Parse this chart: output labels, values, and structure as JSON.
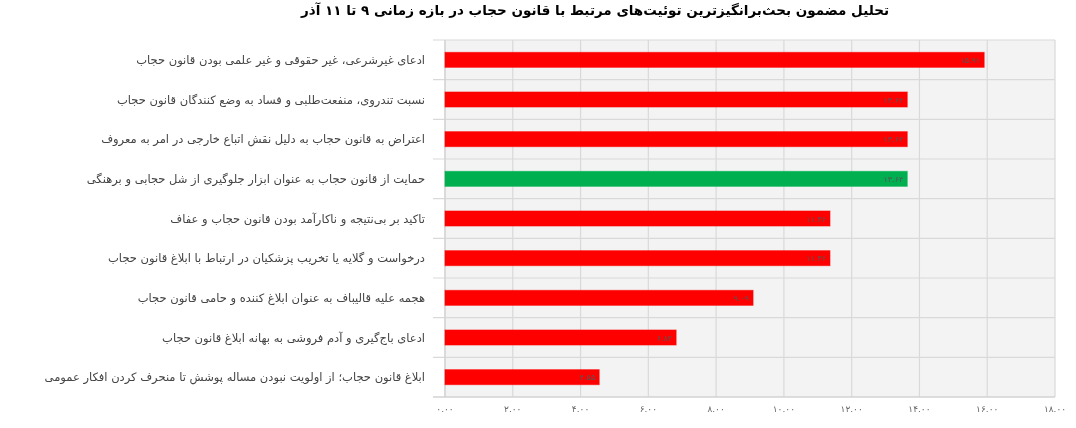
{
  "chart_data": {
    "type": "bar",
    "orientation": "horizontal",
    "title": "تحلیل مضمون بحث‌برانگیزترین توئیت‌های مرتبط با قانون حجاب در بازه زمانی ۹ تا ۱۱ آذر",
    "categories": [
      "ادعای غیرشرعی، غیر حقوقی و غیر علمی بودن قانون حجاب",
      "نسبت تندروی، منفعت‌طلبی و فساد به وضع کنندگان قانون حجاب",
      "اعتراض به قانون حجاب به دلیل نقش اتباع خارجی در امر به معروف",
      "حمایت از قانون حجاب به عنوان ابزار جلوگیری از شل حجابی و برهنگی",
      "تاکید بر بی‌نتیجه و ناکارآمد بودن قانون حجاب و عفاف",
      "درخواست و گلایه یا تخریب پزشکیان در ارتباط با ابلاغ قانون حجاب",
      "هجمه علیه قالیباف به عنوان ابلاغ کننده و حامی قانون حجاب",
      "ادعای باج‌گیری و آدم فروشی به بهانه ابلاغ قانون حجاب",
      "ابلاغ قانون حجاب؛ از اولویت نبودن مساله پوشش تا منحرف کردن افکار عمومی"
    ],
    "values": [
      15.91,
      13.64,
      13.64,
      13.64,
      11.36,
      11.36,
      9.09,
      6.82,
      4.55
    ],
    "value_labels": [
      "۱۵.۹۱",
      "۱۳.۶۴",
      "۱۳.۶۴",
      "۱۳.۶۴",
      "۱۱.۳۶",
      "۱۱.۳۶",
      "۹.۰۹",
      "۶.۸۲",
      "۴.۵۵"
    ],
    "colors": [
      "#ff0000",
      "#ff0000",
      "#ff0000",
      "#00b050",
      "#ff0000",
      "#ff0000",
      "#ff0000",
      "#ff0000",
      "#ff0000"
    ],
    "xlim": [
      0,
      18
    ],
    "xticks": [
      {
        "value": 0,
        "label": "۰.۰۰"
      },
      {
        "value": 2,
        "label": "۲.۰۰"
      },
      {
        "value": 4,
        "label": "۴.۰۰"
      },
      {
        "value": 6,
        "label": "۶.۰۰"
      },
      {
        "value": 8,
        "label": "۸.۰۰"
      },
      {
        "value": 10,
        "label": "۱۰.۰۰"
      },
      {
        "value": 12,
        "label": "۱۲.۰۰"
      },
      {
        "value": 14,
        "label": "۱۴.۰۰"
      },
      {
        "value": 16,
        "label": "۱۶.۰۰"
      },
      {
        "value": 18,
        "label": "۱۸.۰۰"
      }
    ],
    "grid": true
  }
}
